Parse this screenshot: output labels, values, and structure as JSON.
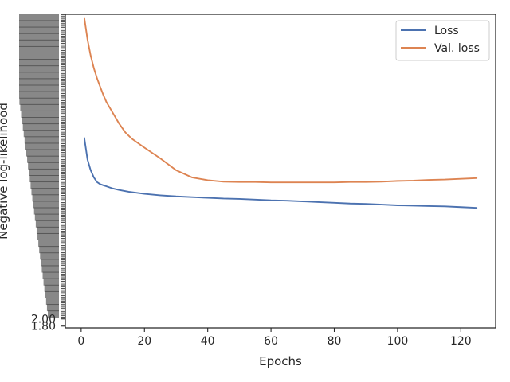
{
  "chart_data": {
    "type": "line",
    "title": "",
    "xlabel": "Epochs",
    "ylabel": "Negative log-likelihood",
    "xlim": [
      -5,
      131
    ],
    "ylim": [
      1.75,
      10.5
    ],
    "xticks": [
      0,
      20,
      40,
      60,
      80,
      100,
      120
    ],
    "yticks_readable": [
      {
        "value": 1.8,
        "label": "1.80"
      },
      {
        "value": 2.0,
        "label": "2.00"
      }
    ],
    "grid": false,
    "legend_position": "top-right",
    "series": [
      {
        "name": "Loss",
        "color": "#4c72b0",
        "x": [
          1,
          2,
          3,
          4,
          5,
          6,
          7,
          8,
          10,
          12,
          15,
          20,
          25,
          30,
          35,
          40,
          45,
          50,
          55,
          60,
          65,
          70,
          75,
          80,
          85,
          90,
          95,
          100,
          105,
          110,
          115,
          120,
          125
        ],
        "y": [
          7.05,
          6.45,
          6.15,
          5.95,
          5.82,
          5.76,
          5.73,
          5.7,
          5.64,
          5.6,
          5.55,
          5.49,
          5.45,
          5.42,
          5.4,
          5.38,
          5.36,
          5.35,
          5.33,
          5.31,
          5.3,
          5.28,
          5.26,
          5.24,
          5.22,
          5.21,
          5.19,
          5.17,
          5.16,
          5.15,
          5.14,
          5.12,
          5.1
        ]
      },
      {
        "name": "Val. loss",
        "color": "#dd8452",
        "x": [
          1,
          2,
          3,
          4,
          5,
          6,
          7,
          8,
          10,
          12,
          14,
          16,
          20,
          25,
          30,
          35,
          40,
          45,
          50,
          55,
          60,
          65,
          70,
          75,
          80,
          85,
          90,
          95,
          100,
          105,
          110,
          115,
          120,
          125
        ],
        "y": [
          10.4,
          9.8,
          9.35,
          9.0,
          8.72,
          8.48,
          8.25,
          8.05,
          7.75,
          7.45,
          7.2,
          7.03,
          6.78,
          6.48,
          6.15,
          5.95,
          5.87,
          5.83,
          5.82,
          5.82,
          5.81,
          5.81,
          5.81,
          5.81,
          5.81,
          5.82,
          5.82,
          5.83,
          5.85,
          5.86,
          5.88,
          5.89,
          5.91,
          5.93
        ]
      }
    ]
  }
}
